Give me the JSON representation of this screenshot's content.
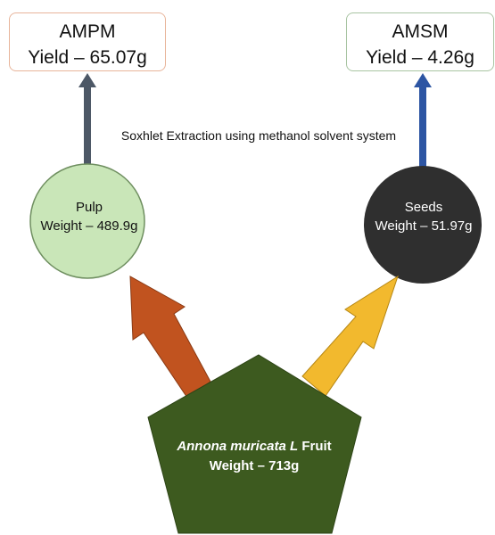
{
  "products": {
    "pulp_extract": {
      "name": "AMPM",
      "yield": "Yield – 65.07g"
    },
    "seed_extract": {
      "name": "AMSM",
      "yield": "Yield – 4.26g"
    }
  },
  "process_label": "Soxhlet Extraction using methanol solvent system",
  "nodes": {
    "pulp": {
      "label": "Pulp",
      "weight": "Weight – 489.9g",
      "color": "#c9e6b8"
    },
    "seeds": {
      "label": "Seeds",
      "weight": "Weight – 51.97g",
      "color": "#2f2f2f"
    },
    "fruit": {
      "species": "Annona muricata L",
      "suffix": " Fruit",
      "weight": "Weight – 713g",
      "color": "#3d5a1f"
    }
  },
  "arrow_colors": {
    "to_pulp": "#c1531f",
    "to_seeds": "#f2b92e",
    "pulp_up": "#4d5866",
    "seeds_up": "#2d55a3"
  }
}
